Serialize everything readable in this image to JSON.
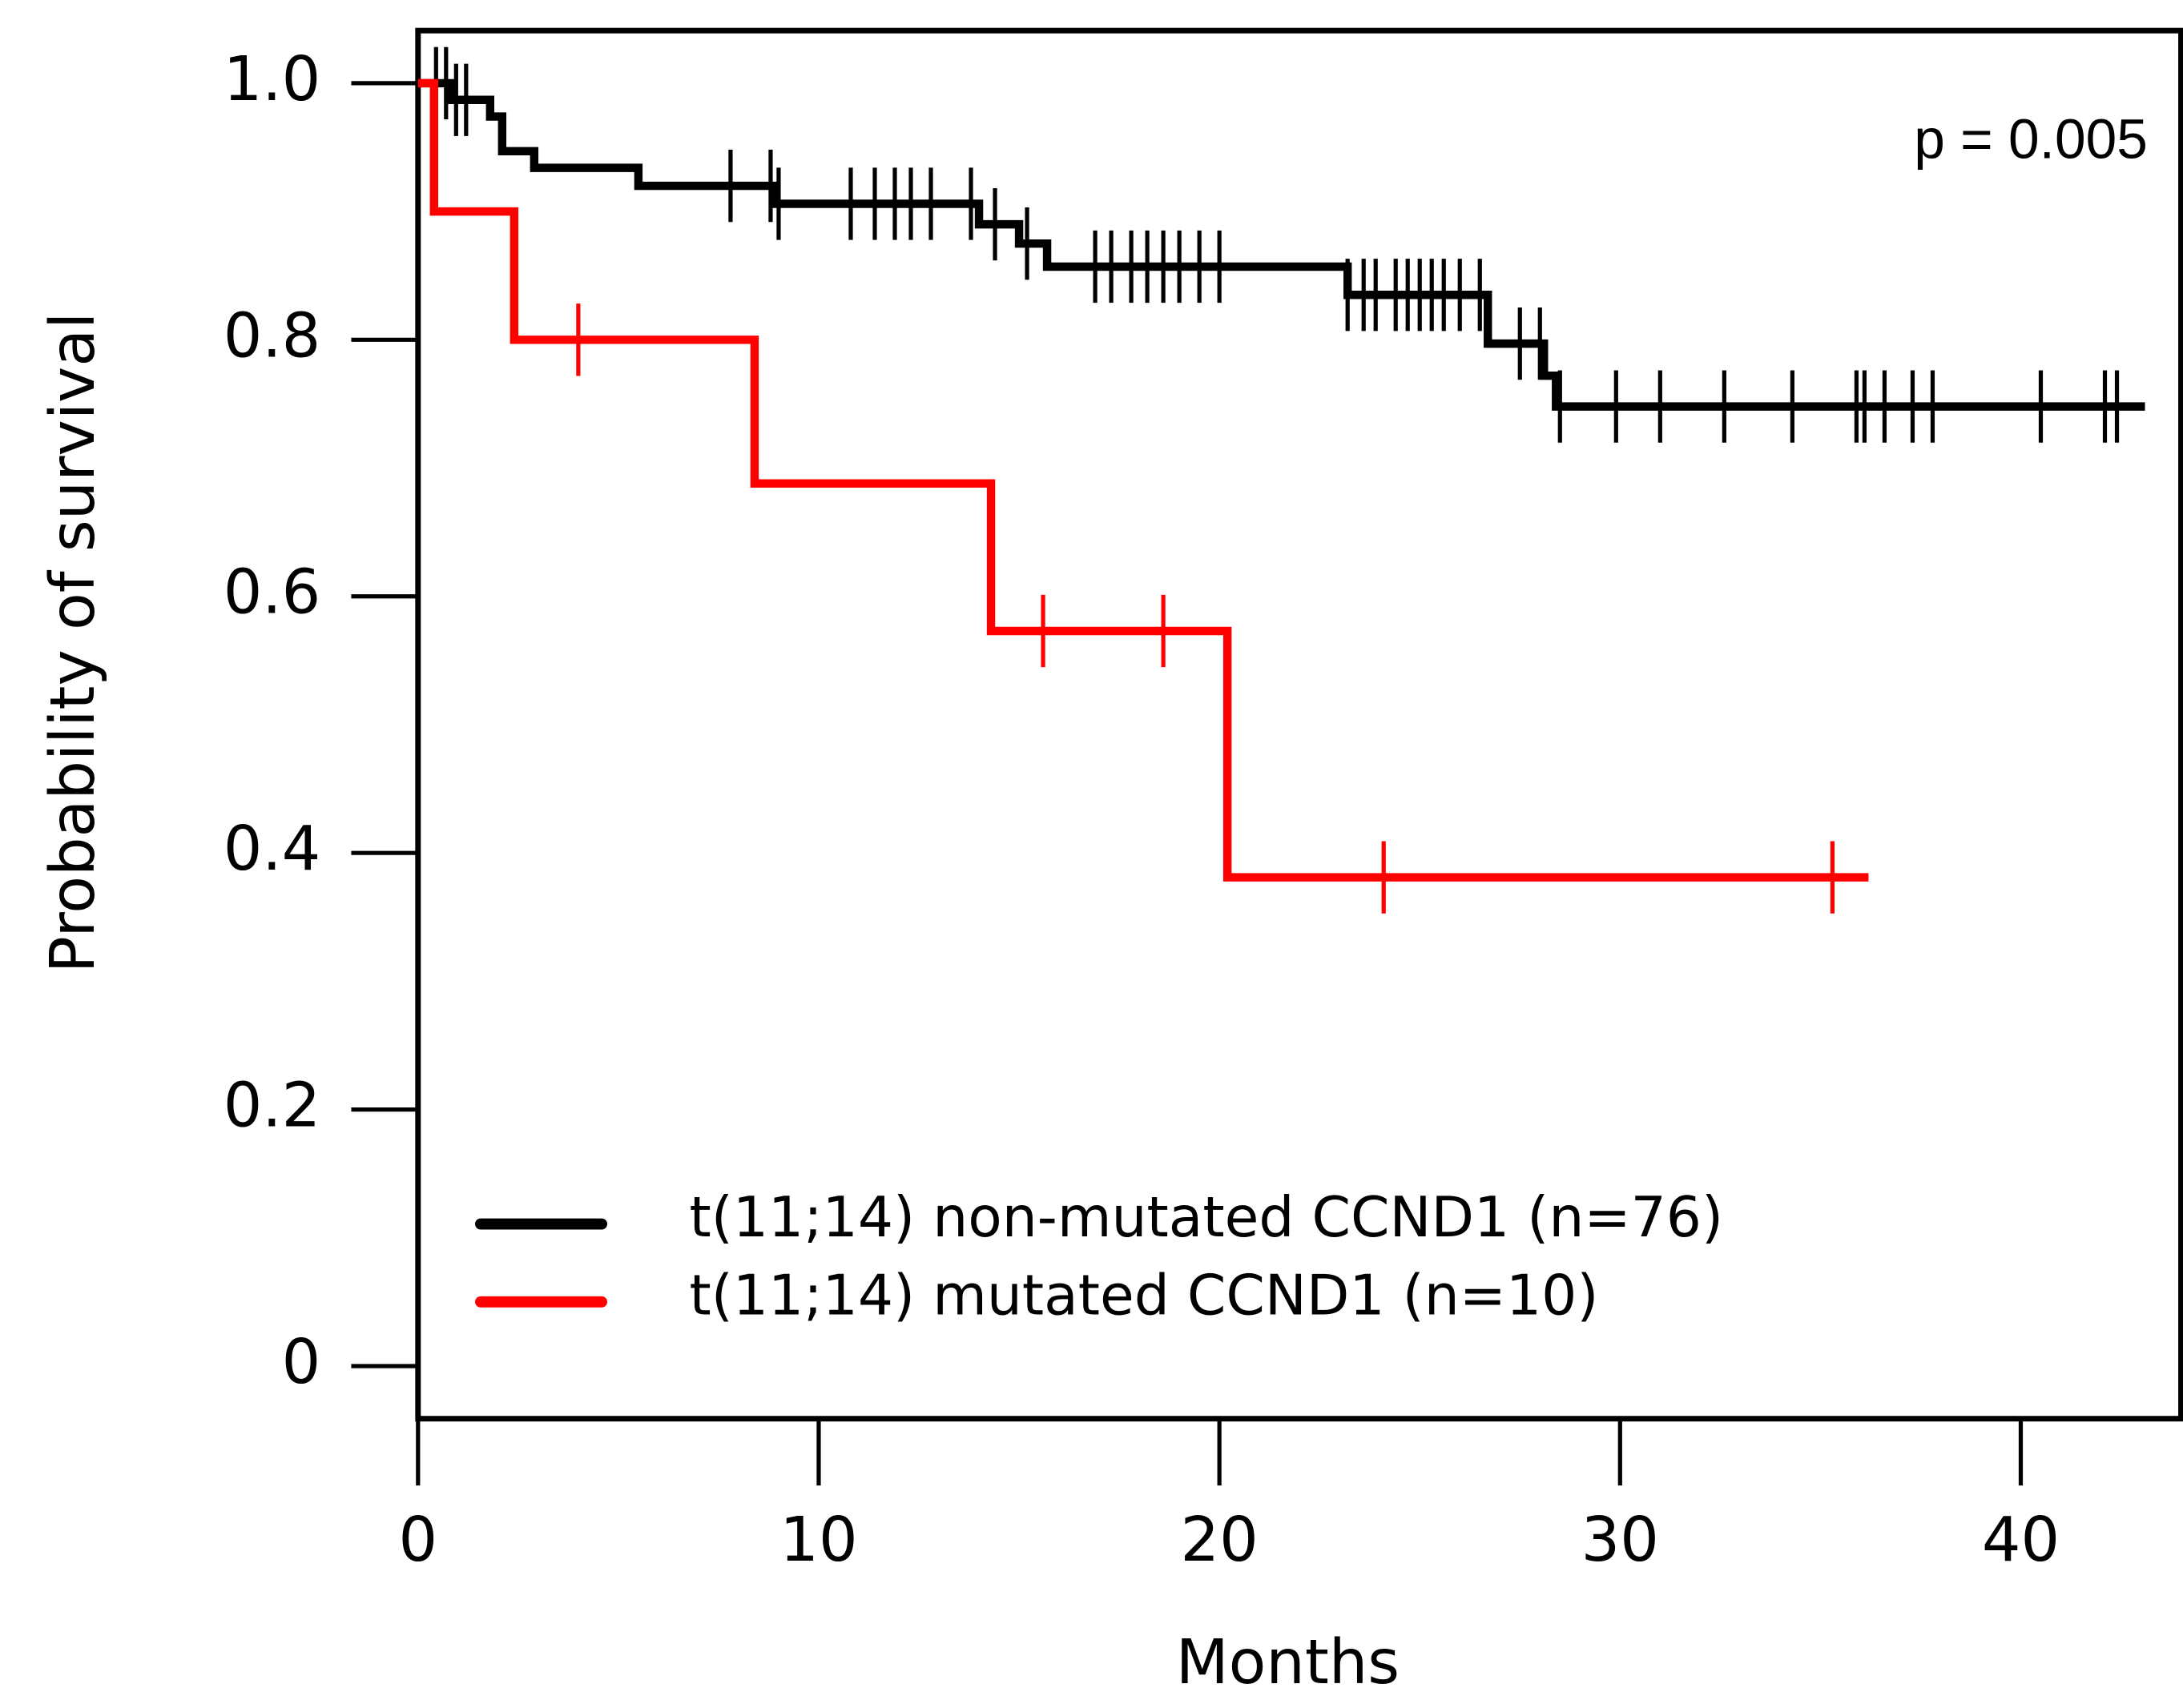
{
  "chart_data": {
    "type": "survival",
    "annotation": "p = 0.005",
    "x_label": "Months",
    "y_label": "Probability of survival",
    "xlim": [
      0,
      44
    ],
    "ylim": [
      -0.041,
      1.041
    ],
    "xticks": [
      0,
      10,
      20,
      30,
      40
    ],
    "yticks": [
      0,
      0.2,
      0.4,
      0.6,
      0.8,
      {
        "value": 1,
        "label": "1.0"
      }
    ],
    "series": [
      {
        "name": "t(11;14) non-mutated CCND1 (n=76)",
        "color": "#000000",
        "x": [
          0,
          0.8,
          1.8,
          2.1,
          2.9,
          5.5,
          8.9,
          14.0,
          15.0,
          15.7,
          23.2,
          26.7,
          28.1,
          28.4,
          43.1
        ],
        "values": [
          1.0,
          0.987,
          0.974,
          0.947,
          0.934,
          0.92,
          0.906,
          0.89,
          0.875,
          0.857,
          0.835,
          0.797,
          0.772,
          0.748,
          0.748
        ],
        "censor_x": [
          0.45,
          0.7,
          0.95,
          1.2,
          7.8,
          8.8,
          9.0,
          10.8,
          11.4,
          11.9,
          12.3,
          12.8,
          13.8,
          14.4,
          15.2,
          16.9,
          17.3,
          17.8,
          18.2,
          18.6,
          19.0,
          19.5,
          20.0,
          23.2,
          23.6,
          23.9,
          24.4,
          24.7,
          25.0,
          25.3,
          25.6,
          26.0,
          26.5,
          27.5,
          28.0,
          28.5,
          29.9,
          31.0,
          32.6,
          34.3,
          35.9,
          36.1,
          36.6,
          37.3,
          37.8,
          40.5,
          42.1,
          42.4
        ]
      },
      {
        "name": "t(11;14) mutated CCND1 (n=10)",
        "color": "#ff0000",
        "x": [
          0,
          0.4,
          2.4,
          8.4,
          14.3,
          20.2,
          36.2
        ],
        "values": [
          1.0,
          0.9,
          0.8,
          0.688,
          0.573,
          0.381,
          0.381
        ],
        "censor_x": [
          4.0,
          15.6,
          18.6,
          24.1,
          35.3
        ]
      }
    ]
  }
}
